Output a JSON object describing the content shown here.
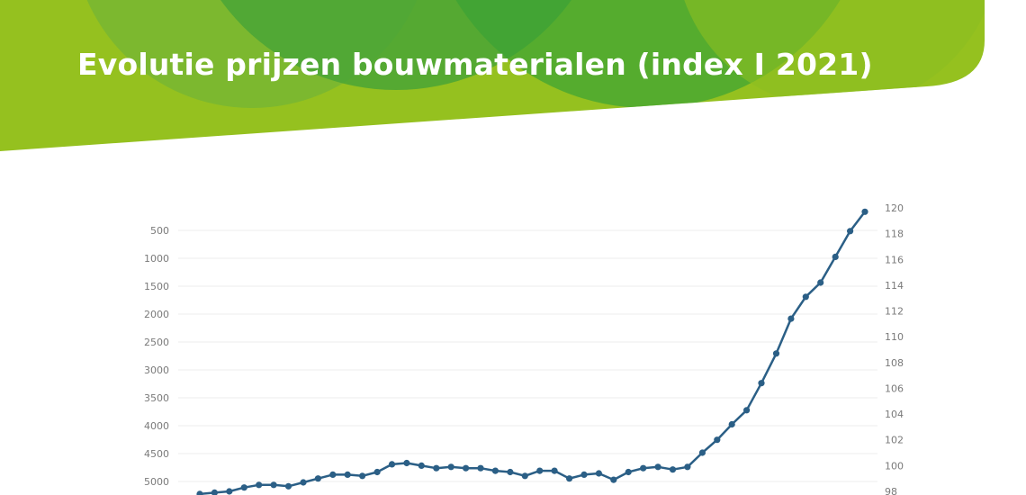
{
  "slide": {
    "title": "Evolutie prijzen bouwmaterialen (index I 2021)",
    "colors": {
      "banner_light": "#95c11f",
      "banner_mid": "#7cb82f",
      "banner_dark": "#3aa335",
      "line": "#2b5f86",
      "grid": "#ececec"
    }
  },
  "chart_data": {
    "type": "line",
    "title": "",
    "xlabel": "",
    "ylabel": "",
    "y_left": {
      "ticks": [
        500,
        1000,
        1500,
        2000,
        2500,
        3000,
        3500,
        4000,
        4500,
        5000
      ],
      "inverted": true
    },
    "y_right": {
      "ticks": [
        98,
        100,
        102,
        104,
        106,
        108,
        110,
        112,
        114,
        116,
        118,
        120
      ],
      "range": [
        97.5,
        120
      ]
    },
    "grid": true,
    "legend": "none",
    "series": [
      {
        "axis": "right",
        "values": [
          97.8,
          97.9,
          98.0,
          98.3,
          98.5,
          98.5,
          98.4,
          98.7,
          99.0,
          99.3,
          99.3,
          99.2,
          99.5,
          100.1,
          100.2,
          100.0,
          99.8,
          99.9,
          99.8,
          99.8,
          99.6,
          99.5,
          99.2,
          99.6,
          99.6,
          99.0,
          99.3,
          99.4,
          98.9,
          99.5,
          99.8,
          99.9,
          99.7,
          99.9,
          101.0,
          102.0,
          103.2,
          104.3,
          106.4,
          108.7,
          111.4,
          113.1,
          114.2,
          116.2,
          118.2,
          119.7
        ]
      }
    ]
  }
}
